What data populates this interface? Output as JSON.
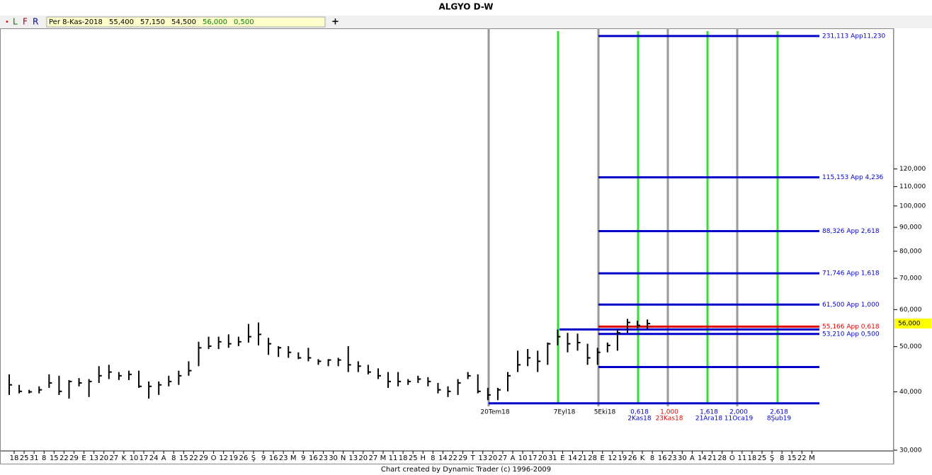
{
  "header": {
    "dot": "•",
    "buttons": [
      "L",
      "F",
      "R"
    ],
    "fields": [
      "Per 8-Kas-2018",
      "55,400",
      "57,150",
      "54,500",
      "56,000",
      "0,500"
    ],
    "plus": "+"
  },
  "footer": "Chart created by Dynamic Trader  (c) 1996-2009",
  "chart_data": {
    "type": "ohlc",
    "title": "ALGYO D-W",
    "categories": [
      "18",
      "25",
      "31",
      "8",
      "15",
      "22",
      "29",
      "E",
      "13",
      "20",
      "27",
      "K",
      "10",
      "17",
      "24",
      "A",
      "8",
      "15",
      "22",
      "29",
      "O",
      "12",
      "19",
      "26",
      "Ş",
      "9",
      "16",
      "23",
      "M",
      "9",
      "16",
      "23",
      "30",
      "N",
      "13",
      "20",
      "27",
      "M",
      "11",
      "18",
      "25",
      "H",
      "8",
      "14",
      "22",
      "29",
      "T",
      "13",
      "20",
      "27",
      "A",
      "10",
      "17",
      "20",
      "31",
      "E",
      "14",
      "21",
      "28",
      "E",
      "12",
      "19",
      "26",
      "K",
      "8",
      "16",
      "23",
      "30",
      "A",
      "14",
      "21",
      "28",
      "O",
      "11",
      "18",
      "25",
      "Ş",
      "8",
      "15",
      "22",
      "M"
    ],
    "high": [
      43600,
      41400,
      40400,
      41100,
      43600,
      43300,
      42400,
      42800,
      42600,
      45400,
      45700,
      44100,
      44400,
      44400,
      42100,
      42100,
      43300,
      44400,
      46500,
      51200,
      52500,
      52500,
      53100,
      52500,
      55900,
      56300,
      52200,
      50100,
      50100,
      48600,
      49700,
      47000,
      47000,
      47300,
      50100,
      46500,
      45700,
      44900,
      44100,
      44100,
      42600,
      43300,
      43000,
      41800,
      41100,
      42600,
      44100,
      43600,
      40800,
      40800,
      44100,
      49000,
      49400,
      49000,
      51000,
      54400,
      53500,
      53300,
      50700,
      49700,
      51000,
      54400,
      57300,
      56800,
      57150,
      null,
      null,
      null,
      null,
      null,
      null,
      null,
      null,
      null,
      null,
      null,
      null,
      null,
      null,
      null,
      null
    ],
    "low": [
      39400,
      39700,
      39700,
      39700,
      40800,
      39400,
      38700,
      41100,
      39000,
      41800,
      42600,
      42400,
      42400,
      40800,
      38700,
      39400,
      41100,
      41400,
      43300,
      45400,
      49400,
      49400,
      49700,
      50100,
      51000,
      50300,
      48000,
      47500,
      47300,
      47000,
      46500,
      45700,
      45400,
      45400,
      44100,
      44100,
      43600,
      42600,
      40800,
      41100,
      41400,
      41800,
      41100,
      39700,
      39000,
      39400,
      42600,
      39700,
      38400,
      38400,
      40100,
      44100,
      45400,
      44100,
      45700,
      50300,
      48600,
      49000,
      45700,
      45700,
      48600,
      49000,
      53500,
      54800,
      54500,
      null,
      null,
      null,
      null,
      null,
      null,
      null,
      null,
      null,
      null,
      null,
      null,
      null,
      null,
      null,
      null
    ],
    "close": [
      41400,
      40100,
      40000,
      40400,
      41800,
      40100,
      42100,
      41800,
      42100,
      43300,
      44100,
      43300,
      43600,
      41100,
      41100,
      41400,
      42100,
      43300,
      44400,
      49700,
      50100,
      51200,
      50700,
      51200,
      52500,
      53100,
      50700,
      49700,
      48600,
      47300,
      47300,
      46500,
      46800,
      46800,
      45700,
      45400,
      44100,
      43300,
      42100,
      42100,
      42100,
      42600,
      42100,
      40400,
      40100,
      41800,
      43300,
      40100,
      39400,
      40400,
      43300,
      45700,
      47300,
      46500,
      50700,
      52500,
      50700,
      51000,
      47300,
      48600,
      50300,
      53500,
      56300,
      55500,
      56000,
      null,
      null,
      null,
      null,
      null,
      null,
      null,
      null,
      null,
      null,
      null,
      null,
      null,
      null,
      null,
      null
    ],
    "color": "#000000",
    "log_scale": true,
    "ylim": [
      30000,
      240000
    ],
    "yticks": [
      {
        "value": 30000,
        "label": "30,000"
      },
      {
        "value": 40000,
        "label": "40,000"
      },
      {
        "value": 50000,
        "label": "50,000"
      },
      {
        "value": 60000,
        "label": "60,000"
      },
      {
        "value": 70000,
        "label": "70,000"
      },
      {
        "value": 80000,
        "label": "80,000"
      },
      {
        "value": 90000,
        "label": "90,000"
      },
      {
        "value": 100000,
        "label": "100,000"
      },
      {
        "value": 110000,
        "label": "110,000"
      },
      {
        "value": 120000,
        "label": "120,000"
      }
    ],
    "last_price": {
      "value": 56000,
      "label": "56,000"
    },
    "levels": [
      231113,
      115153,
      88326,
      71746,
      61500,
      55166,
      54400,
      53210,
      45200,
      37800
    ],
    "level_labels": [
      "231,113 App11,230",
      "115,153 App 4,236",
      "88,326 App 2,618",
      "71,746 App 1,618",
      "61,500 App 1,000",
      "55,166 App 0,618",
      null,
      "53,210 App 0,500",
      null,
      null
    ],
    "level_colors": [
      "#0000cc",
      "#0000cc",
      "#0000cc",
      "#0000cc",
      "#0000cc",
      "#e00000",
      "#0000cc",
      "#0000cc",
      "#0000cc",
      "#0000cc"
    ],
    "time_lines": [
      {
        "ratio": null,
        "date": "20Tem18",
        "color": "#999999",
        "label_color": "#000000"
      },
      {
        "ratio": null,
        "date": "7Eyl18",
        "color": "#33dd33",
        "label_color": "#000000"
      },
      {
        "ratio": null,
        "date": "5Eki18",
        "color": "#999999",
        "label_color": "#000000"
      },
      {
        "ratio": "0,618",
        "date": "2Kas18",
        "color": "#33dd33",
        "label_color": "#0000cc"
      },
      {
        "ratio": "1,000",
        "date": "23Kas18",
        "color": "#999999",
        "label_color": "#e00000"
      },
      {
        "ratio": "1,618",
        "date": "21Ara18",
        "color": "#33dd33",
        "label_color": "#0000cc"
      },
      {
        "ratio": "2,000",
        "date": "11Oca19",
        "color": "#999999",
        "label_color": "#0000cc"
      },
      {
        "ratio": "2,618",
        "date": "8Şub19",
        "color": "#33dd33",
        "label_color": "#0000cc"
      }
    ]
  }
}
